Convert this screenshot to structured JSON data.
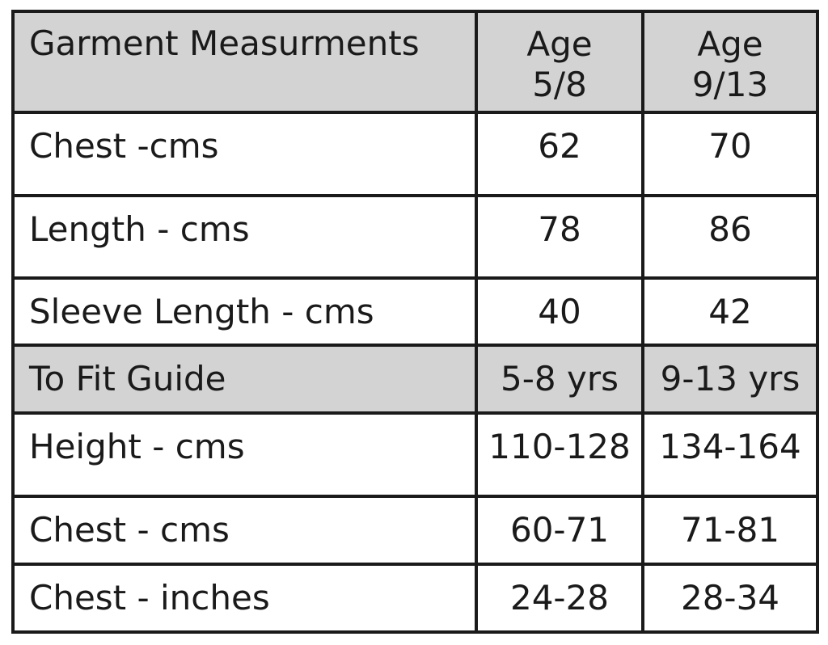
{
  "table": {
    "header": {
      "col1": "Garment Measurments",
      "col2_line1": "Age",
      "col2_line2": "5/8",
      "col3_line1": "Age",
      "col3_line2": "9/13"
    },
    "garment_rows": [
      {
        "label": "Chest -cms",
        "v1": "62",
        "v2": "70"
      },
      {
        "label": "Length - cms",
        "v1": "78",
        "v2": "86"
      },
      {
        "label": "Sleeve Length - cms",
        "v1": "40",
        "v2": "42"
      }
    ],
    "fit_header": {
      "label": "To Fit Guide",
      "v1": "5-8 yrs",
      "v2": "9-13 yrs"
    },
    "fit_rows": [
      {
        "label": "Height - cms",
        "v1": "110-128",
        "v2": "134-164"
      },
      {
        "label": "Chest - cms",
        "v1": "60-71",
        "v2": "71-81"
      },
      {
        "label": "Chest - inches",
        "v1": "24-28",
        "v2": "28-34"
      }
    ],
    "colors": {
      "header_bg": "#d3d3d3",
      "border": "#1a1a1a",
      "text": "#1a1a1a"
    }
  }
}
